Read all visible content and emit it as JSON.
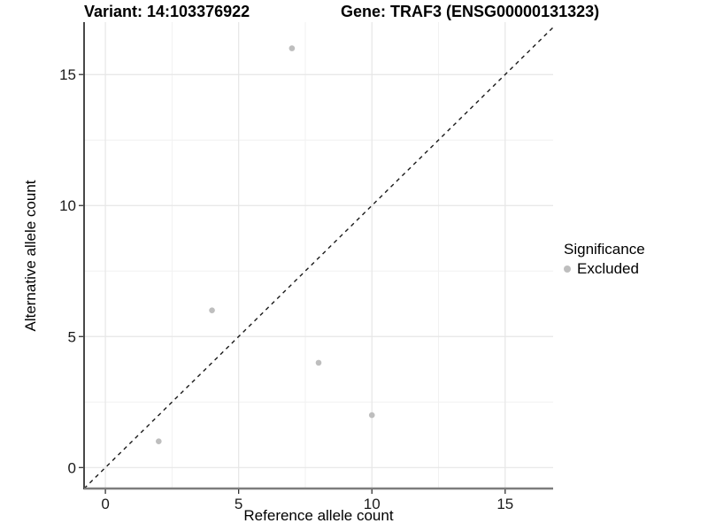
{
  "chart_data": {
    "type": "scatter",
    "title_left": "Variant: 14:103376922",
    "title_right": "Gene: TRAF3 (ENSG00000131323)",
    "xlabel": "Reference allele count",
    "ylabel": "Alternative allele count",
    "xlim": [
      -0.8,
      16.8
    ],
    "ylim": [
      -0.8,
      17.0
    ],
    "x_ticks": [
      0,
      5,
      10,
      15
    ],
    "y_ticks": [
      0,
      5,
      10,
      15
    ],
    "x_minor_ticks": [
      2.5,
      7.5,
      12.5
    ],
    "y_minor_ticks": [
      2.5,
      7.5,
      12.5
    ],
    "grid": true,
    "series": [
      {
        "name": "Excluded",
        "color": "#bebebe",
        "point_radius": 3.3,
        "points": [
          {
            "x": 2,
            "y": 1
          },
          {
            "x": 4,
            "y": 6
          },
          {
            "x": 7,
            "y": 16
          },
          {
            "x": 8,
            "y": 4
          },
          {
            "x": 10,
            "y": 2
          }
        ]
      }
    ],
    "reference_line": {
      "slope": 1,
      "intercept": 0,
      "style": "dashed",
      "color": "#1a1a1a"
    },
    "legend": {
      "position": "right",
      "title": "Significance",
      "items": [
        {
          "label": "Excluded",
          "color": "#bebebe"
        }
      ]
    }
  },
  "colors": {
    "background": "#ffffff",
    "grid_major": "#e6e6e6",
    "grid_minor": "#f1f1f1",
    "axis_line_y": "#1a1a1a",
    "axis_line_x": "#7d7d7d",
    "tick_mark": "#333333"
  }
}
